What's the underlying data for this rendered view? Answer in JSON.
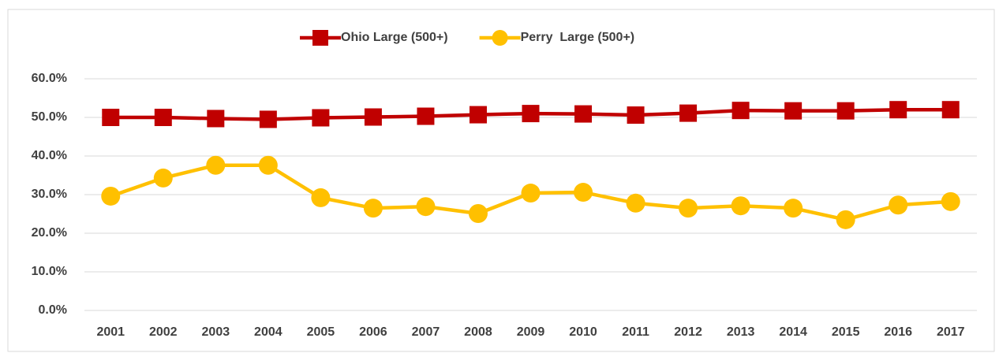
{
  "chart_data": {
    "type": "line",
    "categories": [
      "2001",
      "2002",
      "2003",
      "2004",
      "2005",
      "2006",
      "2007",
      "2008",
      "2009",
      "2010",
      "2011",
      "2012",
      "2013",
      "2014",
      "2015",
      "2016",
      "2017"
    ],
    "series": [
      {
        "name": "Ohio Large (500+)",
        "color": "#c00000",
        "marker": "square",
        "values": [
          50.0,
          50.0,
          49.7,
          49.5,
          49.9,
          50.1,
          50.3,
          50.7,
          51.0,
          50.9,
          50.6,
          51.1,
          51.8,
          51.7,
          51.7,
          52.0,
          52.0
        ]
      },
      {
        "name": "Perry  Large (500+)",
        "color": "#ffc000",
        "marker": "circle",
        "values": [
          29.6,
          34.3,
          37.6,
          37.6,
          29.2,
          26.5,
          26.9,
          25.1,
          30.4,
          30.6,
          27.8,
          26.5,
          27.1,
          26.5,
          23.5,
          27.3,
          28.2
        ]
      }
    ],
    "ylim": [
      0,
      60
    ],
    "yticks": [
      {
        "value": 0,
        "label": "0.0%"
      },
      {
        "value": 10,
        "label": "10.0%"
      },
      {
        "value": 20,
        "label": "20.0%"
      },
      {
        "value": 30,
        "label": "30.0%"
      },
      {
        "value": 40,
        "label": "40.0%"
      },
      {
        "value": 50,
        "label": "50.0%"
      },
      {
        "value": 60,
        "label": "60.0%"
      }
    ],
    "grid": true,
    "legend": "top"
  }
}
